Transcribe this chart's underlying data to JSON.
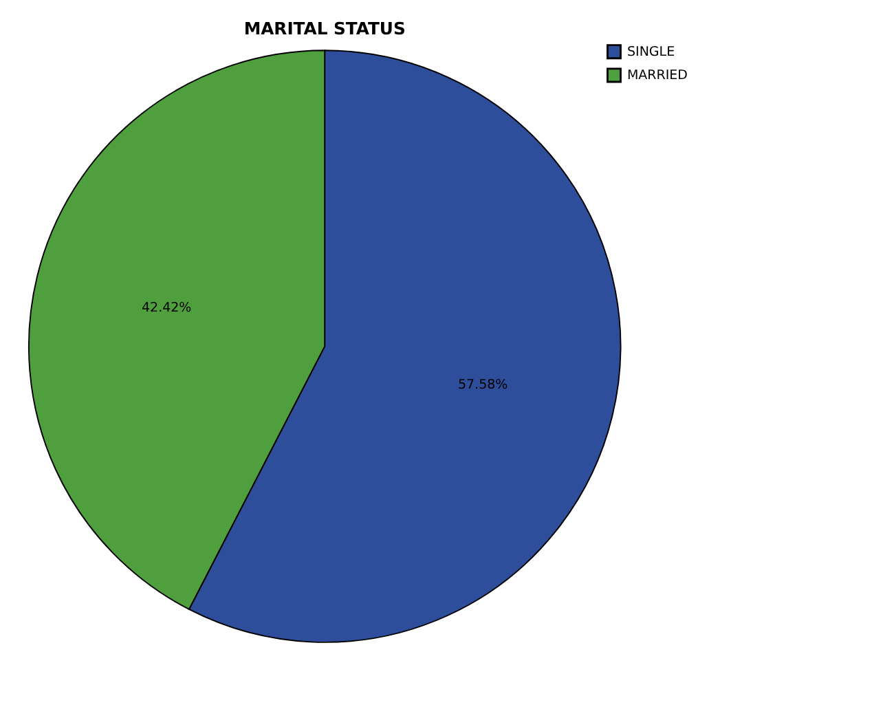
{
  "chart_data": {
    "type": "pie",
    "title": "MARITAL STATUS",
    "categories": [
      "SINGLE",
      "MARRIED"
    ],
    "values": [
      57.58,
      42.42
    ],
    "colors": [
      "#2e4e9b",
      "#4f9f3e"
    ],
    "value_labels": [
      "57.58%",
      "42.42%"
    ],
    "legend": "top right"
  }
}
